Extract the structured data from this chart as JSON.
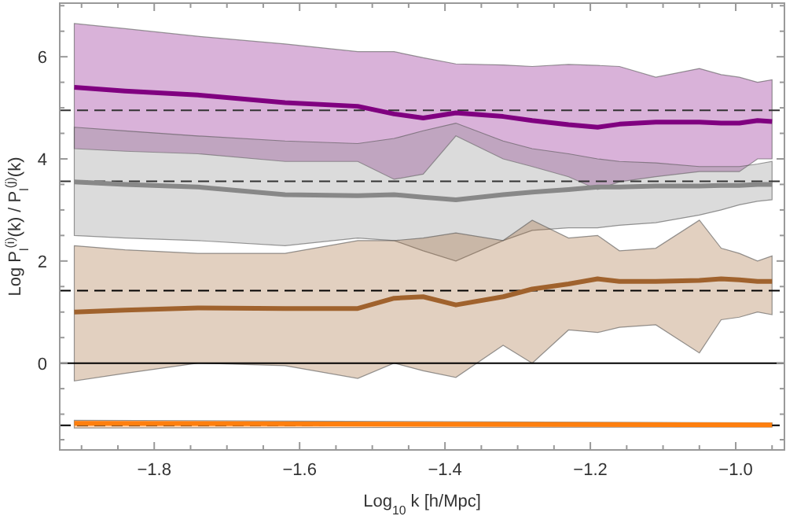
{
  "chart_data": {
    "type": "line",
    "xlabel": "Log$_{10}$ k [h/Mpc]",
    "ylabel": "Log P$_{l}$$^{(i)}$(k) / P$_{l}$$^{(j)}$(k)",
    "x": [
      -1.91,
      -1.84,
      -1.74,
      -1.62,
      -1.52,
      -1.47,
      -1.43,
      -1.385,
      -1.32,
      -1.28,
      -1.23,
      -1.19,
      -1.16,
      -1.11,
      -1.05,
      -1.02,
      -0.995,
      -0.97,
      -0.95
    ],
    "xlim": [
      -1.93,
      -0.933
    ],
    "xticks": [
      {
        "value": -1.9,
        "label": null
      },
      {
        "value": -1.85,
        "label": null
      },
      {
        "value": -1.8,
        "label": "−1.8"
      },
      {
        "value": -1.75,
        "label": null
      },
      {
        "value": -1.7,
        "label": null
      },
      {
        "value": -1.65,
        "label": null
      },
      {
        "value": -1.6,
        "label": "−1.6"
      },
      {
        "value": -1.55,
        "label": null
      },
      {
        "value": -1.5,
        "label": null
      },
      {
        "value": -1.45,
        "label": null
      },
      {
        "value": -1.4,
        "label": "−1.4"
      },
      {
        "value": -1.35,
        "label": null
      },
      {
        "value": -1.3,
        "label": null
      },
      {
        "value": -1.25,
        "label": null
      },
      {
        "value": -1.2,
        "label": "−1.2"
      },
      {
        "value": -1.15,
        "label": null
      },
      {
        "value": -1.1,
        "label": null
      },
      {
        "value": -1.05,
        "label": null
      },
      {
        "value": -1.0,
        "label": "−1.0"
      },
      {
        "value": -0.95,
        "label": null
      }
    ],
    "ylim": [
      -1.7,
      7.05
    ],
    "yticks": [
      {
        "value": -1.5,
        "label": null
      },
      {
        "value": -1,
        "label": null
      },
      {
        "value": -0.5,
        "label": null
      },
      0,
      {
        "value": 0.5,
        "label": null
      },
      {
        "value": 1,
        "label": null
      },
      {
        "value": 1.5,
        "label": null
      },
      2,
      {
        "value": 2.5,
        "label": null
      },
      {
        "value": 3,
        "label": null
      },
      {
        "value": 3.5,
        "label": null
      },
      4,
      {
        "value": 4.5,
        "label": null
      },
      {
        "value": 5,
        "label": null
      },
      {
        "value": 5.5,
        "label": null
      },
      6,
      {
        "value": 6.5,
        "label": null
      },
      {
        "value": 7,
        "label": null
      }
    ],
    "series": [
      {
        "color": "#800080",
        "values": [
          5.4,
          5.33,
          5.25,
          5.1,
          5.03,
          4.88,
          4.8,
          4.9,
          4.83,
          4.75,
          4.67,
          4.62,
          4.68,
          4.72,
          4.72,
          4.7,
          4.7,
          4.75,
          4.73
        ],
        "upper": [
          6.65,
          6.55,
          6.4,
          6.25,
          6.1,
          6.1,
          5.98,
          5.86,
          5.84,
          5.81,
          5.85,
          5.83,
          5.81,
          5.6,
          5.77,
          5.65,
          5.6,
          5.5,
          5.55
        ],
        "lower": [
          4.2,
          4.15,
          4.1,
          3.95,
          3.95,
          3.6,
          3.7,
          4.45,
          4.0,
          3.85,
          3.65,
          3.4,
          3.55,
          3.65,
          3.75,
          3.75,
          3.75,
          4.0,
          4.0
        ]
      },
      {
        "color": "#888888",
        "values": [
          3.55,
          3.5,
          3.45,
          3.3,
          3.28,
          3.3,
          3.25,
          3.2,
          3.3,
          3.35,
          3.4,
          3.45,
          3.45,
          3.47,
          3.47,
          3.48,
          3.48,
          3.5,
          3.5
        ],
        "upper": [
          4.62,
          4.55,
          4.45,
          4.35,
          4.3,
          4.4,
          4.55,
          4.7,
          4.35,
          4.2,
          4.1,
          4.0,
          3.95,
          3.92,
          3.85,
          3.85,
          3.85,
          3.9,
          3.95
        ],
        "lower": [
          2.5,
          2.45,
          2.4,
          2.3,
          2.45,
          2.4,
          2.2,
          2.0,
          2.4,
          2.6,
          2.65,
          2.65,
          2.7,
          2.75,
          2.9,
          3.0,
          3.1,
          3.17,
          3.2
        ]
      },
      {
        "color": "#a0622d",
        "values": [
          1.0,
          1.04,
          1.08,
          1.07,
          1.07,
          1.27,
          1.3,
          1.14,
          1.3,
          1.45,
          1.55,
          1.65,
          1.6,
          1.6,
          1.62,
          1.65,
          1.63,
          1.6,
          1.6
        ],
        "upper": [
          2.3,
          2.22,
          2.15,
          2.15,
          2.4,
          2.4,
          2.45,
          2.55,
          2.4,
          2.8,
          2.45,
          2.5,
          2.2,
          2.25,
          2.8,
          2.25,
          2.15,
          2.0,
          2.1
        ],
        "lower": [
          -0.35,
          -0.2,
          0.0,
          -0.05,
          -0.3,
          0.0,
          -0.15,
          -0.28,
          0.35,
          0.0,
          0.65,
          0.6,
          0.7,
          0.75,
          0.2,
          0.85,
          0.9,
          1.0,
          0.95
        ]
      },
      {
        "color": "#ff7f0e",
        "x": [
          -1.91,
          -0.95
        ],
        "values": [
          -1.18,
          -1.21
        ],
        "upper": [
          -1.12,
          -1.17
        ],
        "lower": [
          -1.27,
          -1.25
        ]
      }
    ],
    "ref_lines": [
      {
        "axis": "y",
        "value": 0,
        "color": "#000000",
        "line_style": "solid"
      },
      {
        "axis": "y",
        "value": 4.95,
        "color": "#333333",
        "line_style": "dashed"
      },
      {
        "axis": "y",
        "value": 3.56,
        "color": "#333333",
        "line_style": "dashed"
      },
      {
        "axis": "y",
        "value": 1.42,
        "color": "#000000",
        "line_style": "dashed"
      },
      {
        "axis": "y",
        "value": -1.22,
        "color": "#000000",
        "line_style": "dashed"
      }
    ],
    "grid": false,
    "line_style": "solid",
    "marker": "none"
  }
}
